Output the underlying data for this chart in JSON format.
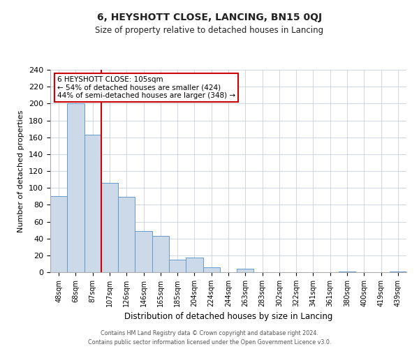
{
  "title": "6, HEYSHOTT CLOSE, LANCING, BN15 0QJ",
  "subtitle": "Size of property relative to detached houses in Lancing",
  "xlabel": "Distribution of detached houses by size in Lancing",
  "ylabel": "Number of detached properties",
  "bar_labels": [
    "48sqm",
    "68sqm",
    "87sqm",
    "107sqm",
    "126sqm",
    "146sqm",
    "165sqm",
    "185sqm",
    "204sqm",
    "224sqm",
    "244sqm",
    "263sqm",
    "283sqm",
    "302sqm",
    "322sqm",
    "341sqm",
    "361sqm",
    "380sqm",
    "400sqm",
    "419sqm",
    "439sqm"
  ],
  "bar_values": [
    90,
    200,
    163,
    106,
    89,
    49,
    43,
    15,
    17,
    6,
    0,
    4,
    0,
    0,
    0,
    0,
    0,
    1,
    0,
    0,
    1
  ],
  "bar_color": "#ccd9e8",
  "bar_edgecolor": "#6699cc",
  "vline_color": "#cc0000",
  "ylim": [
    0,
    240
  ],
  "yticks": [
    0,
    20,
    40,
    60,
    80,
    100,
    120,
    140,
    160,
    180,
    200,
    220,
    240
  ],
  "annotation_title": "6 HEYSHOTT CLOSE: 105sqm",
  "annotation_line1": "← 54% of detached houses are smaller (424)",
  "annotation_line2": "44% of semi-detached houses are larger (348) →",
  "annotation_box_color": "#ffffff",
  "annotation_box_edgecolor": "#cc0000",
  "footer1": "Contains HM Land Registry data © Crown copyright and database right 2024.",
  "footer2": "Contains public sector information licensed under the Open Government Licence v3.0.",
  "background_color": "#ffffff",
  "grid_color": "#c8d0dc"
}
